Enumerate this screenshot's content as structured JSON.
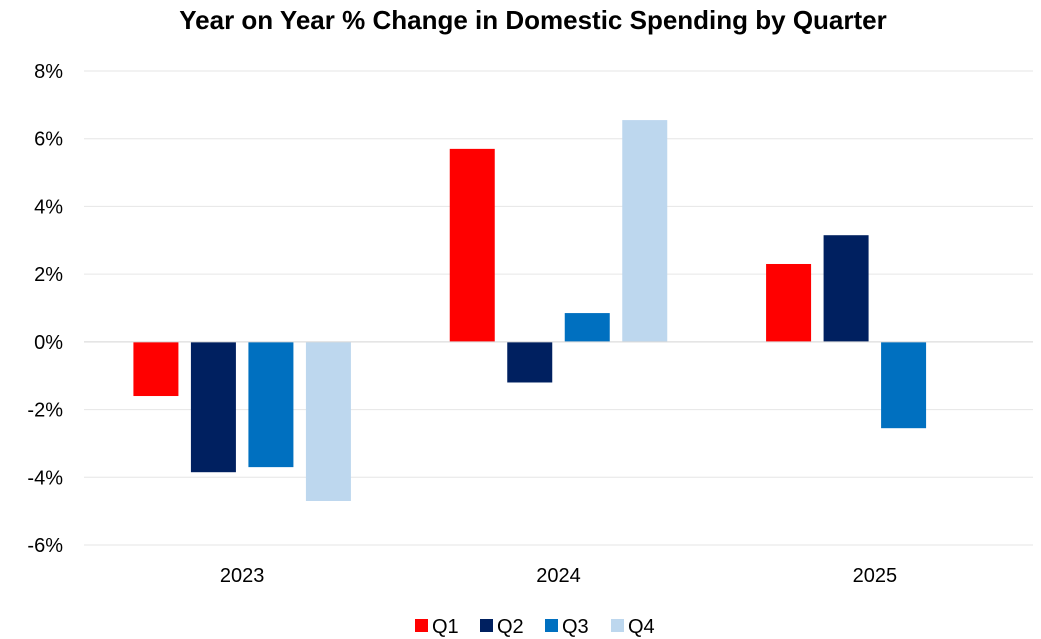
{
  "chart_data": {
    "type": "bar",
    "title": "Year on Year % Change in Domestic Spending by Quarter",
    "xlabel": "",
    "ylabel": "",
    "categories": [
      "2023",
      "2024",
      "2025"
    ],
    "series": [
      {
        "name": "Q1",
        "color": "#ff0000",
        "values": [
          -1.6,
          5.7,
          2.3
        ]
      },
      {
        "name": "Q2",
        "color": "#002060",
        "values": [
          -3.85,
          -1.2,
          3.15
        ]
      },
      {
        "name": "Q3",
        "color": "#0070c0",
        "values": [
          -3.7,
          0.85,
          -2.55
        ]
      },
      {
        "name": "Q4",
        "color": "#bdd7ee",
        "values": [
          -4.7,
          6.55,
          null
        ]
      }
    ],
    "ylim": [
      -6,
      8
    ],
    "yticks": [
      8,
      6,
      4,
      2,
      0,
      -2,
      -4,
      -6
    ],
    "ytick_labels": [
      "8%",
      "6%",
      "4%",
      "2%",
      "0%",
      "-2%",
      "-4%",
      "-6%"
    ],
    "grid": true,
    "legend_position": "bottom"
  }
}
